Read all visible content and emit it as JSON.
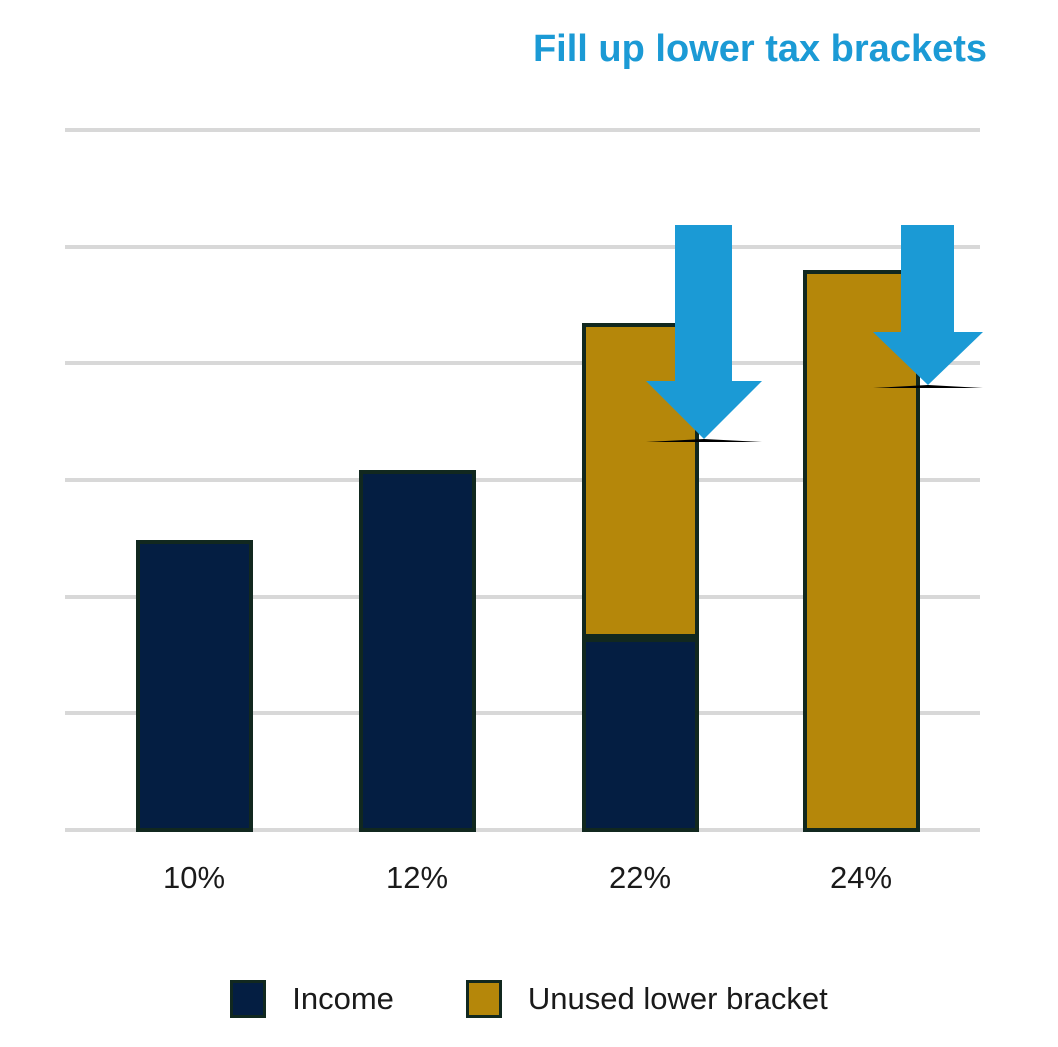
{
  "title": {
    "text": "Fill up lower tax brackets",
    "color": "#1b9ad5"
  },
  "annotation": {
    "arrows": [
      {
        "name": "down-arrow-22",
        "points_at": "22%",
        "color": "#1b9ad5"
      },
      {
        "name": "down-arrow-24",
        "points_at": "24%",
        "color": "#1b9ad5"
      }
    ]
  },
  "chart_data": {
    "type": "bar",
    "stacked": true,
    "title": "Fill up lower tax brackets",
    "xlabel": "",
    "ylabel": "",
    "categories": [
      "10%",
      "12%",
      "22%",
      "24%"
    ],
    "series": [
      {
        "name": "Income",
        "color": "#041e42",
        "values": [
          2.5,
          3.1,
          1.66,
          0
        ]
      },
      {
        "name": "Unused lower bracket",
        "color": "#b5870a",
        "values": [
          0,
          0,
          2.7,
          4.82
        ]
      }
    ],
    "ylim": [
      0,
      6
    ],
    "y_axis_labels_visible": false,
    "grid": true,
    "gridline_count": 7,
    "gridline_color": "#d8d8d8",
    "bar_border_color": "#11281f",
    "legend_position": "bottom"
  },
  "legend": {
    "items": [
      {
        "label": "Income",
        "color": "#041e42"
      },
      {
        "label": "Unused lower bracket",
        "color": "#b5870a"
      }
    ]
  }
}
